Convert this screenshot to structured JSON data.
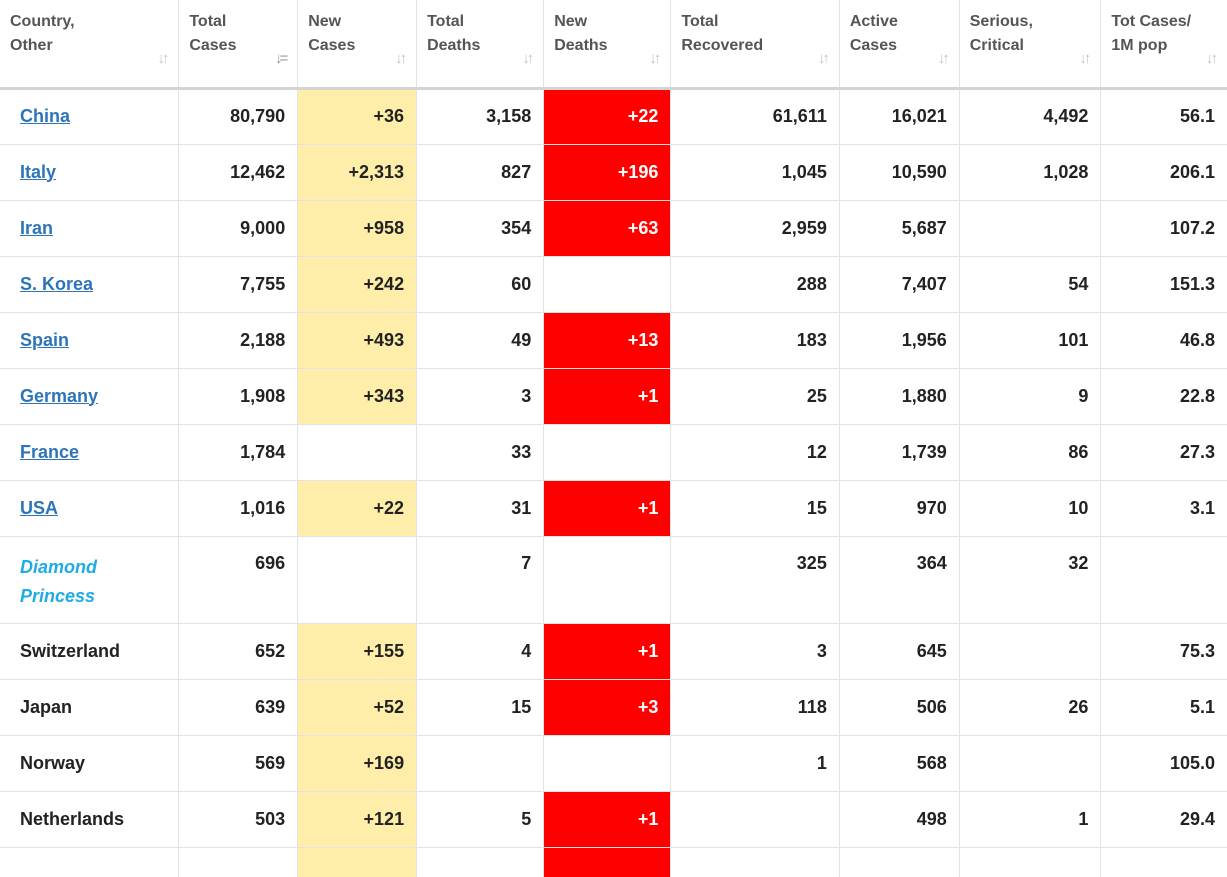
{
  "headers": [
    {
      "line1": "Country,",
      "line2": "Other"
    },
    {
      "line1": "Total",
      "line2": "Cases"
    },
    {
      "line1": "New",
      "line2": "Cases"
    },
    {
      "line1": "Total",
      "line2": "Deaths"
    },
    {
      "line1": "New",
      "line2": "Deaths"
    },
    {
      "line1": "Total",
      "line2": "Recovered"
    },
    {
      "line1": "Active",
      "line2": "Cases"
    },
    {
      "line1": "Serious,",
      "line2": "Critical"
    },
    {
      "line1": "Tot Cases/",
      "line2": "1M pop"
    }
  ],
  "sort_icons": {
    "default": "sort-icon",
    "active": "sort-desc-icon"
  },
  "colors": {
    "new_cases_bg": "#feeeaa",
    "new_deaths_bg": "#fe0000",
    "link": "#2d74ba",
    "ship_link": "#1eabe6"
  },
  "rows": [
    {
      "country": "China",
      "total_cases": "80,790",
      "new_cases": "+36",
      "total_deaths": "3,158",
      "new_deaths": "+22",
      "total_recovered": "61,611",
      "active_cases": "16,021",
      "serious_critical": "4,492",
      "per_million": "56.1"
    },
    {
      "country": "Italy",
      "total_cases": "12,462",
      "new_cases": "+2,313",
      "total_deaths": "827",
      "new_deaths": "+196",
      "total_recovered": "1,045",
      "active_cases": "10,590",
      "serious_critical": "1,028",
      "per_million": "206.1"
    },
    {
      "country": "Iran",
      "total_cases": "9,000",
      "new_cases": "+958",
      "total_deaths": "354",
      "new_deaths": "+63",
      "total_recovered": "2,959",
      "active_cases": "5,687",
      "serious_critical": "",
      "per_million": "107.2"
    },
    {
      "country": "S. Korea",
      "total_cases": "7,755",
      "new_cases": "+242",
      "total_deaths": "60",
      "new_deaths": "",
      "total_recovered": "288",
      "active_cases": "7,407",
      "serious_critical": "54",
      "per_million": "151.3"
    },
    {
      "country": "Spain",
      "total_cases": "2,188",
      "new_cases": "+493",
      "total_deaths": "49",
      "new_deaths": "+13",
      "total_recovered": "183",
      "active_cases": "1,956",
      "serious_critical": "101",
      "per_million": "46.8"
    },
    {
      "country": "Germany",
      "total_cases": "1,908",
      "new_cases": "+343",
      "total_deaths": "3",
      "new_deaths": "+1",
      "total_recovered": "25",
      "active_cases": "1,880",
      "serious_critical": "9",
      "per_million": "22.8"
    },
    {
      "country": "France",
      "total_cases": "1,784",
      "new_cases": "",
      "total_deaths": "33",
      "new_deaths": "",
      "total_recovered": "12",
      "active_cases": "1,739",
      "serious_critical": "86",
      "per_million": "27.3"
    },
    {
      "country": "USA",
      "total_cases": "1,016",
      "new_cases": "+22",
      "total_deaths": "31",
      "new_deaths": "+1",
      "total_recovered": "15",
      "active_cases": "970",
      "serious_critical": "10",
      "per_million": "3.1"
    },
    {
      "country": "Diamond Princess",
      "total_cases": "696",
      "new_cases": "",
      "total_deaths": "7",
      "new_deaths": "",
      "total_recovered": "325",
      "active_cases": "364",
      "serious_critical": "32",
      "per_million": ""
    },
    {
      "country": "Switzerland",
      "total_cases": "652",
      "new_cases": "+155",
      "total_deaths": "4",
      "new_deaths": "+1",
      "total_recovered": "3",
      "active_cases": "645",
      "serious_critical": "",
      "per_million": "75.3"
    },
    {
      "country": "Japan",
      "total_cases": "639",
      "new_cases": "+52",
      "total_deaths": "15",
      "new_deaths": "+3",
      "total_recovered": "118",
      "active_cases": "506",
      "serious_critical": "26",
      "per_million": "5.1"
    },
    {
      "country": "Norway",
      "total_cases": "569",
      "new_cases": "+169",
      "total_deaths": "",
      "new_deaths": "",
      "total_recovered": "1",
      "active_cases": "568",
      "serious_critical": "",
      "per_million": "105.0"
    },
    {
      "country": "Netherlands",
      "total_cases": "503",
      "new_cases": "+121",
      "total_deaths": "5",
      "new_deaths": "+1",
      "total_recovered": "",
      "active_cases": "498",
      "serious_critical": "1",
      "per_million": "29.4"
    }
  ]
}
